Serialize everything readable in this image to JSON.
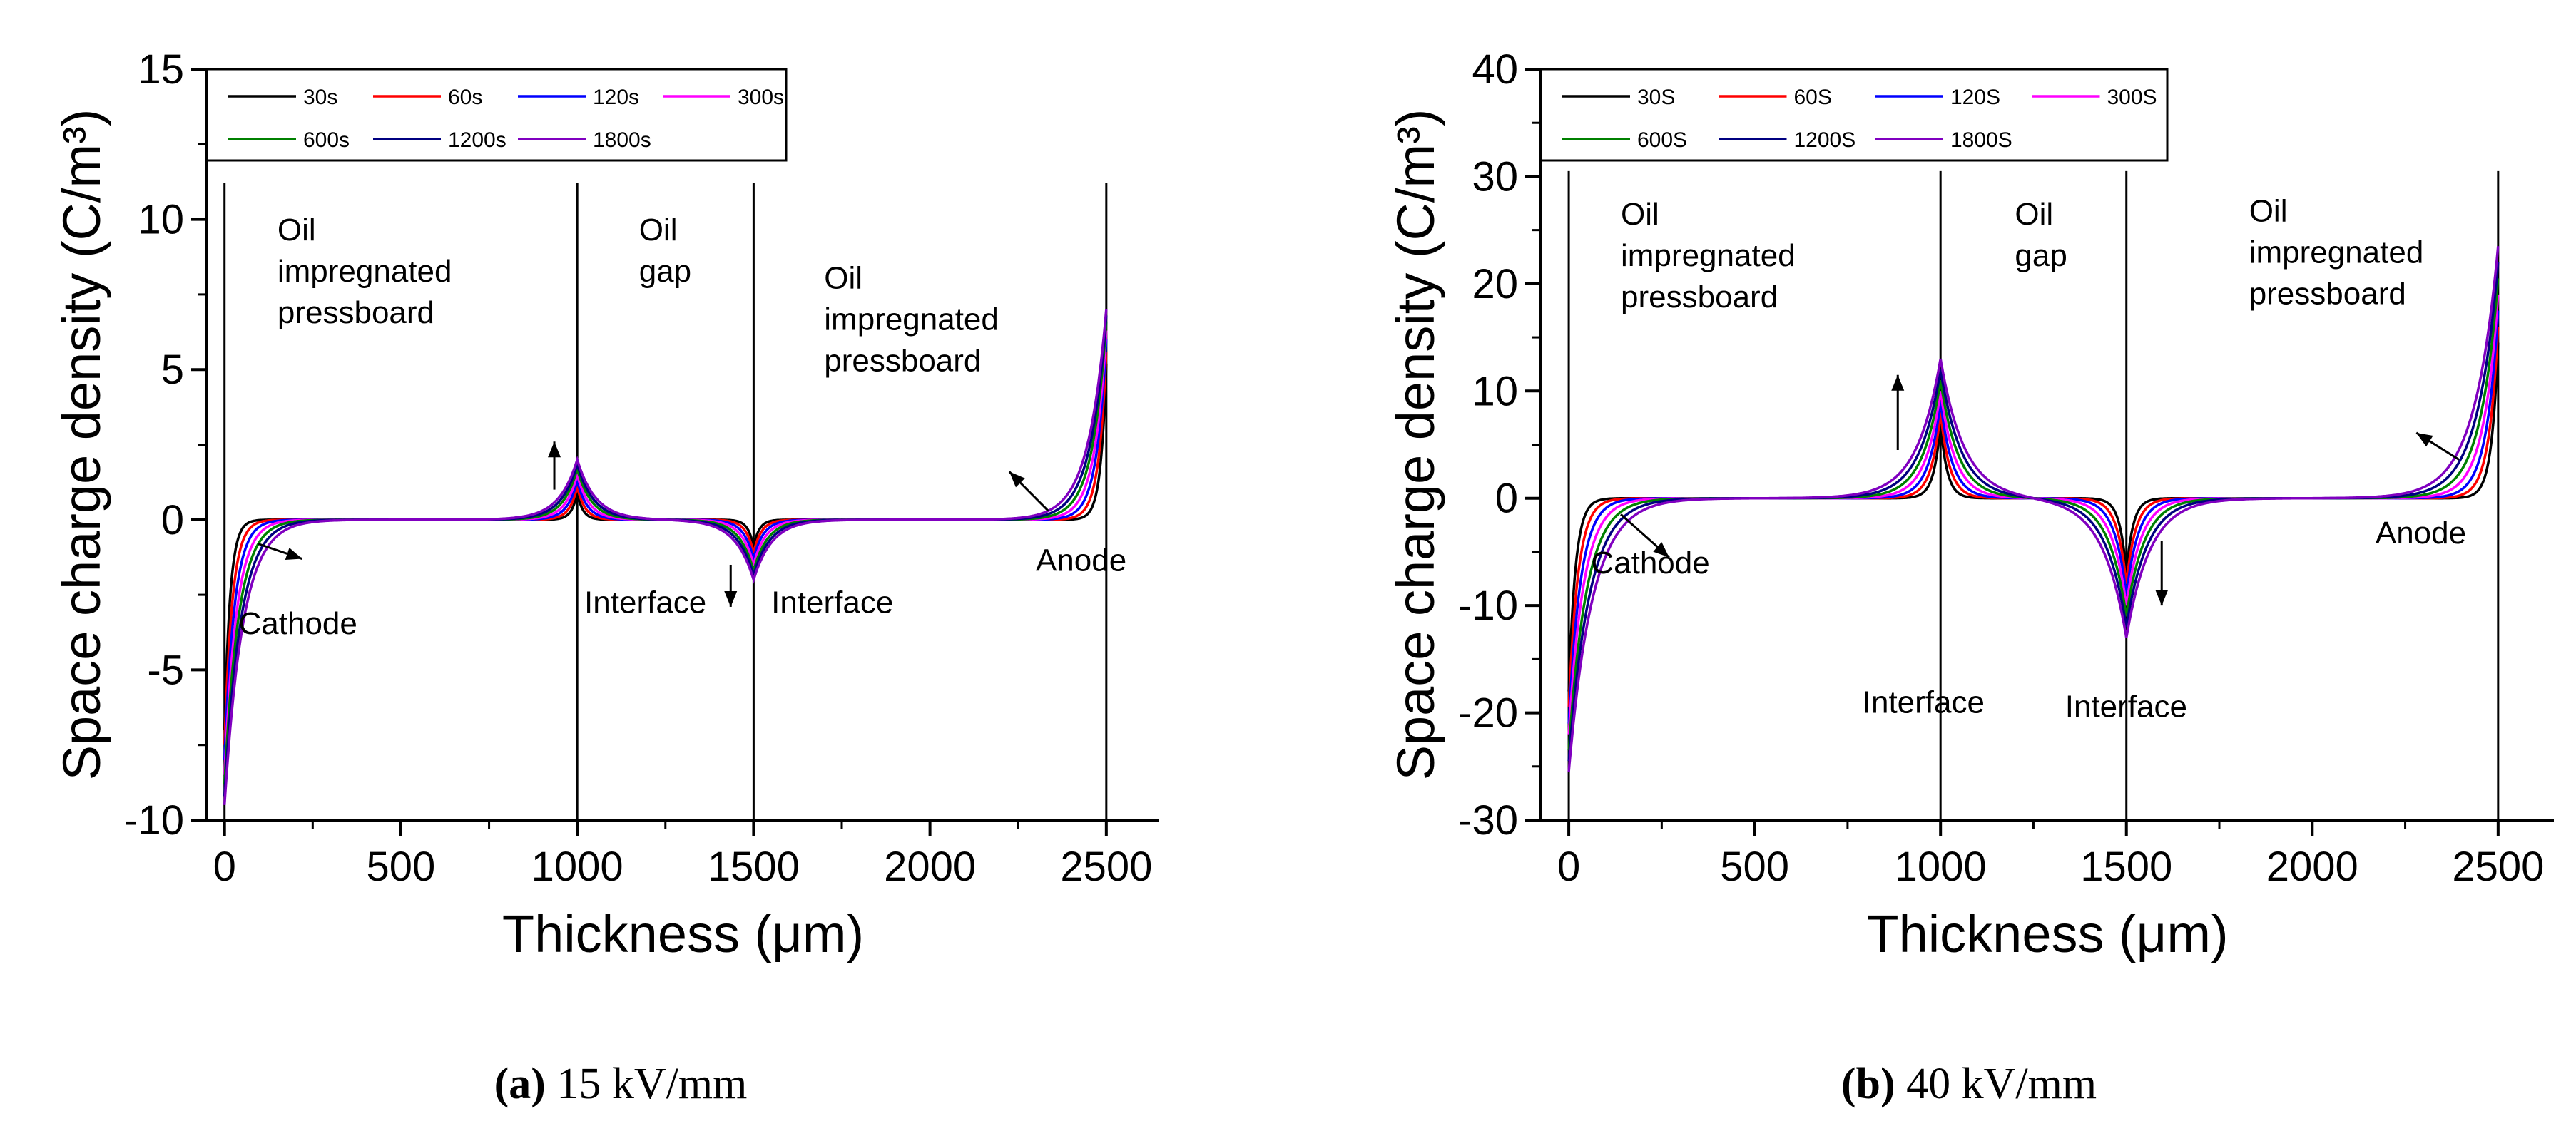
{
  "chart_data": [
    {
      "type": "line",
      "panel": "(a)",
      "caption_label": "(a)",
      "caption_text": "15 kV/mm",
      "xlabel": "Thickness (μm)",
      "ylabel": "Space charge density (C/m³)",
      "xlim": [
        -50,
        2650
      ],
      "ylim": [
        -10,
        15
      ],
      "xticks": [
        0,
        500,
        1000,
        1500,
        2000,
        2500
      ],
      "xtick_labels": [
        "0",
        "500",
        "1000",
        "1500",
        "2000",
        "2500"
      ],
      "yticks": [
        -10,
        -5,
        0,
        5,
        10,
        15
      ],
      "ytick_labels": [
        "-10",
        "-5",
        "0",
        "5",
        "10",
        "15"
      ],
      "grid": false,
      "legend": [
        "30s",
        "60s",
        "120s",
        "300s",
        "600s",
        "1200s",
        "1800s"
      ],
      "legend_position": "top-left",
      "series_colors": [
        "#000000",
        "#ff0000",
        "#0000ff",
        "#ff00ff",
        "#008000",
        "#000080",
        "#8000c0"
      ],
      "boundaries": [
        0,
        1000,
        1500,
        2500
      ],
      "boundary_top": 11.2,
      "boundary_bottom": -10,
      "series": [
        {
          "name": "30s",
          "cathode": -7.0,
          "interface1": 0.9,
          "interface2": -0.9,
          "anode": 5.2,
          "width": 16
        },
        {
          "name": "60s",
          "cathode": -7.5,
          "interface1": 1.1,
          "interface2": -1.1,
          "anode": 5.6,
          "width": 22
        },
        {
          "name": "120s",
          "cathode": -8.0,
          "interface1": 1.3,
          "interface2": -1.3,
          "anode": 6.0,
          "width": 28
        },
        {
          "name": "300s",
          "cathode": -8.5,
          "interface1": 1.5,
          "interface2": -1.5,
          "anode": 6.3,
          "width": 34
        },
        {
          "name": "600s",
          "cathode": -8.8,
          "interface1": 1.7,
          "interface2": -1.7,
          "anode": 6.6,
          "width": 40
        },
        {
          "name": "1200s",
          "cathode": -9.2,
          "interface1": 1.85,
          "interface2": -1.85,
          "anode": 6.8,
          "width": 46
        },
        {
          "name": "1800s",
          "cathode": -9.5,
          "interface1": 2.0,
          "interface2": -2.0,
          "anode": 7.0,
          "width": 52
        }
      ],
      "annotations": [
        {
          "text": [
            "Oil",
            "impregnated",
            "pressboard"
          ],
          "x": 150,
          "y": 9.3
        },
        {
          "text": [
            "Oil",
            "gap"
          ],
          "x": 1175,
          "y": 9.3
        },
        {
          "text": [
            "Oil",
            "impregnated",
            "pressboard"
          ],
          "x": 1700,
          "y": 7.7
        },
        {
          "text": [
            "Cathode"
          ],
          "x": 40,
          "y": -3.8
        },
        {
          "text": [
            "Interface"
          ],
          "x": 1020,
          "y": -3.1
        },
        {
          "text": [
            "Interface"
          ],
          "x": 1550,
          "y": -3.1
        },
        {
          "text": [
            "Anode"
          ],
          "x": 2300,
          "y": -1.7
        }
      ],
      "arrows": [
        {
          "from": [
            95,
            -0.8
          ],
          "to": [
            220,
            -1.3
          ]
        },
        {
          "from": [
            935,
            1.0
          ],
          "to": [
            935,
            2.6
          ]
        },
        {
          "from": [
            1435,
            -1.5
          ],
          "to": [
            1435,
            -2.9
          ]
        },
        {
          "from": [
            2335,
            0.3
          ],
          "to": [
            2225,
            1.6
          ]
        }
      ]
    },
    {
      "type": "line",
      "panel": "(b)",
      "caption_label": "(b)",
      "caption_text": "40 kV/mm",
      "xlabel": "Thickness (μm)",
      "ylabel": "Space charge density (C/m³)",
      "xlim": [
        -75,
        2650
      ],
      "ylim": [
        -30,
        40
      ],
      "xticks": [
        0,
        500,
        1000,
        1500,
        2000,
        2500
      ],
      "xtick_labels": [
        "0",
        "500",
        "1000",
        "1500",
        "2000",
        "2500"
      ],
      "yticks": [
        -30,
        -20,
        -10,
        0,
        10,
        20,
        30,
        40
      ],
      "ytick_labels": [
        "-30",
        "-20",
        "-10",
        "0",
        "10",
        "20",
        "30",
        "40"
      ],
      "grid": false,
      "legend": [
        "30S",
        "60S",
        "120S",
        "300S",
        "600S",
        "1200S",
        "1800S"
      ],
      "legend_position": "top-left",
      "series_colors": [
        "#000000",
        "#ff0000",
        "#0000ff",
        "#ff00ff",
        "#008000",
        "#000080",
        "#8000c0"
      ],
      "boundaries": [
        0,
        1000,
        1500,
        2500
      ],
      "boundary_top": 30.5,
      "boundary_bottom": -30,
      "series": [
        {
          "name": "30S",
          "cathode": -18.0,
          "interface1": 7.0,
          "interface2": -7.0,
          "anode": 14.5,
          "width": 18
        },
        {
          "name": "60S",
          "cathode": -19.5,
          "interface1": 8.0,
          "interface2": -8.0,
          "anode": 16.0,
          "width": 25
        },
        {
          "name": "120S",
          "cathode": -21.0,
          "interface1": 9.0,
          "interface2": -9.0,
          "anode": 17.5,
          "width": 32
        },
        {
          "name": "300S",
          "cathode": -22.0,
          "interface1": 10.0,
          "interface2": -10.0,
          "anode": 19.0,
          "width": 40
        },
        {
          "name": "600S",
          "cathode": -23.5,
          "interface1": 11.0,
          "interface2": -11.0,
          "anode": 20.5,
          "width": 48
        },
        {
          "name": "1200S",
          "cathode": -24.5,
          "interface1": 12.0,
          "interface2": -12.0,
          "anode": 22.0,
          "width": 56
        },
        {
          "name": "1800S",
          "cathode": -25.5,
          "interface1": 13.0,
          "interface2": -13.0,
          "anode": 23.5,
          "width": 64
        }
      ],
      "annotations": [
        {
          "text": [
            "Oil",
            "impregnated",
            "pressboard"
          ],
          "x": 140,
          "y": 25.5
        },
        {
          "text": [
            "Oil",
            "gap"
          ],
          "x": 1200,
          "y": 25.5
        },
        {
          "text": [
            "Oil",
            "impregnated",
            "pressboard"
          ],
          "x": 1830,
          "y": 25.8
        },
        {
          "text": [
            "Cathode"
          ],
          "x": 60,
          "y": -7.0
        },
        {
          "text": [
            "Interface"
          ],
          "x": 790,
          "y": -20.0
        },
        {
          "text": [
            "Interface"
          ],
          "x": 1335,
          "y": -20.4
        },
        {
          "text": [
            "Anode"
          ],
          "x": 2170,
          "y": -4.2
        }
      ],
      "arrows": [
        {
          "from": [
            140,
            -1.5
          ],
          "to": [
            270,
            -5.5
          ]
        },
        {
          "from": [
            885,
            4.5
          ],
          "to": [
            885,
            11.5
          ]
        },
        {
          "from": [
            1595,
            -4.0
          ],
          "to": [
            1595,
            -10.0
          ]
        },
        {
          "from": [
            2395,
            3.6
          ],
          "to": [
            2280,
            6.1
          ]
        }
      ]
    }
  ]
}
